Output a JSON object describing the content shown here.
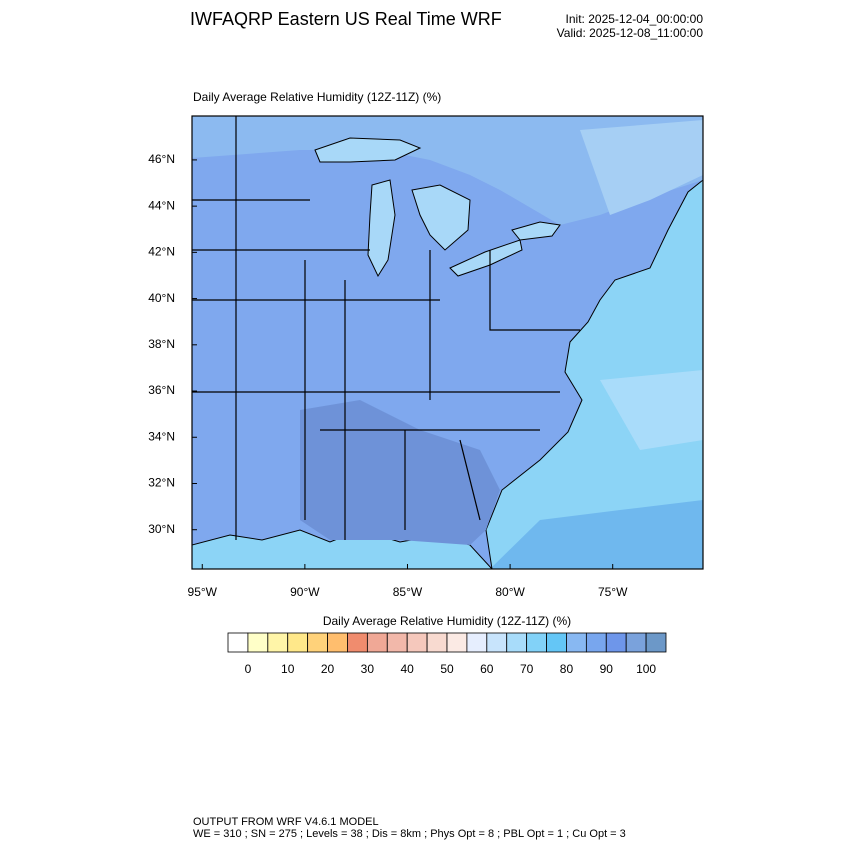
{
  "chart_data": {
    "type": "map",
    "title": "IWFAQRP Eastern US Real Time WRF",
    "init": "Init: 2025-12-04_00:00:00",
    "valid": "Valid: 2025-12-08_11:00:00",
    "subtitle": "Daily Average Relative Humidity (12Z-11Z)   (%)",
    "xlim": [
      -95.5,
      -70.6
    ],
    "ylim": [
      28.3,
      47.9
    ],
    "xticks": [
      {
        "value": -95,
        "label": "95°W"
      },
      {
        "value": -90,
        "label": "90°W"
      },
      {
        "value": -85,
        "label": "85°W"
      },
      {
        "value": -80,
        "label": "80°W"
      },
      {
        "value": -75,
        "label": "75°W"
      }
    ],
    "yticks": [
      {
        "value": 46,
        "label": "46°N"
      },
      {
        "value": 44,
        "label": "44°N"
      },
      {
        "value": 42,
        "label": "42°N"
      },
      {
        "value": 40,
        "label": "40°N"
      },
      {
        "value": 38,
        "label": "38°N"
      },
      {
        "value": 36,
        "label": "36°N"
      },
      {
        "value": 34,
        "label": "34°N"
      },
      {
        "value": 32,
        "label": "32°N"
      },
      {
        "value": 30,
        "label": "30°N"
      }
    ],
    "colorbar": {
      "title": "Daily Average Relative Humidity (12Z-11Z)  (%)",
      "ticks": [
        0,
        10,
        20,
        30,
        40,
        50,
        60,
        70,
        80,
        90,
        100
      ],
      "colors": [
        "#ffffff",
        "#ffffc8",
        "#fff5a8",
        "#ffe88a",
        "#ffd27a",
        "#ffbe6e",
        "#f08c6e",
        "#f0a896",
        "#f2b8aa",
        "#f5c8bc",
        "#f8dad0",
        "#fbeae4",
        "#e6eefe",
        "#c8e4fc",
        "#a8dcfa",
        "#82d2f8",
        "#64c6f6",
        "#88b8f2",
        "#78a6ee",
        "#6e96ea",
        "#7aa2dc",
        "#6c98c8"
      ]
    },
    "footer": [
      "OUTPUT FROM WRF V4.6.1 MODEL",
      "WE = 310 ; SN = 275 ; Levels = 38 ; Dis = 8km ; Phys Opt = 8 ; PBL Opt = 1 ; Cu Opt = 3"
    ]
  }
}
